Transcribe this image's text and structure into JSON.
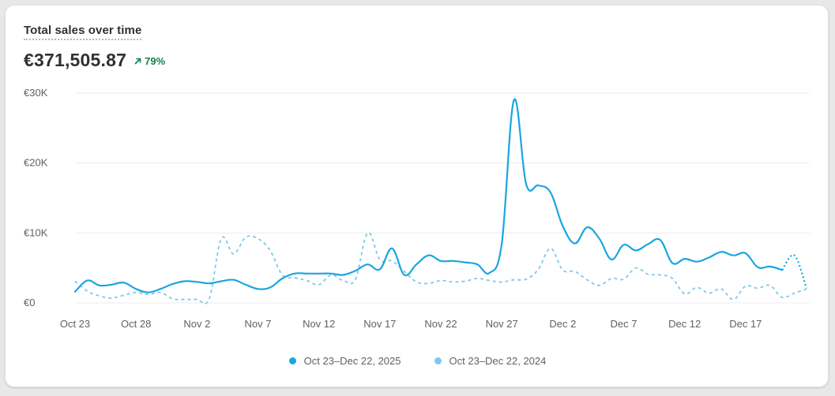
{
  "card": {
    "title": "Total sales over time",
    "value": "€371,505.87",
    "delta": "79%",
    "delta_color": "#14804a"
  },
  "colors": {
    "current": "#1aa6e0",
    "previous": "#7fc9e8",
    "grid": "#ebebeb",
    "axis_text": "#616161"
  },
  "chart_data": {
    "type": "line",
    "ylim": [
      0,
      30000
    ],
    "yticks": [
      {
        "value": 0,
        "label": "€0"
      },
      {
        "value": 10000,
        "label": "€10K"
      },
      {
        "value": 20000,
        "label": "€20K"
      },
      {
        "value": 30000,
        "label": "€30K"
      }
    ],
    "xticks": [
      "Oct 23",
      "Oct 28",
      "Nov 2",
      "Nov 7",
      "Nov 12",
      "Nov 17",
      "Nov 22",
      "Nov 27",
      "Dec 2",
      "Dec 7",
      "Dec 12",
      "Dec 17"
    ],
    "xtick_day_step": 5,
    "series": [
      {
        "name": "Oct 23–Dec 22, 2025",
        "style": "solid",
        "values": [
          1600,
          3200,
          2500,
          2600,
          2900,
          2000,
          1500,
          2000,
          2700,
          3100,
          3000,
          2800,
          3100,
          3300,
          2600,
          2000,
          2200,
          3500,
          4200,
          4200,
          4200,
          4200,
          4000,
          4600,
          5500,
          4800,
          7800,
          4000,
          5500,
          6800,
          6000,
          6000,
          5800,
          5500,
          4300,
          8500,
          29000,
          17000,
          16800,
          15800,
          11000,
          8500,
          10800,
          9200,
          6200,
          8300,
          7500,
          8400,
          9000,
          5700,
          6300,
          5900,
          6500,
          7300,
          6800,
          7100,
          5100,
          5200,
          4700,
          6800,
          2100
        ],
        "projected_tail": 2
      },
      {
        "name": "Oct 23–Dec 22, 2024",
        "style": "dashed",
        "values": [
          3100,
          1700,
          1000,
          700,
          1100,
          1500,
          1200,
          1500,
          600,
          500,
          500,
          600,
          9200,
          7000,
          9400,
          9200,
          7500,
          4000,
          3600,
          3200,
          2600,
          4000,
          3200,
          3400,
          10000,
          6200,
          6000,
          4500,
          3000,
          2800,
          3200,
          3000,
          3100,
          3500,
          3200,
          3000,
          3300,
          3400,
          4800,
          7800,
          4700,
          4500,
          3300,
          2500,
          3500,
          3400,
          5000,
          4100,
          4000,
          3500,
          1300,
          2200,
          1400,
          2000,
          500,
          2400,
          2100,
          2500,
          800,
          1400,
          2000
        ]
      }
    ]
  }
}
